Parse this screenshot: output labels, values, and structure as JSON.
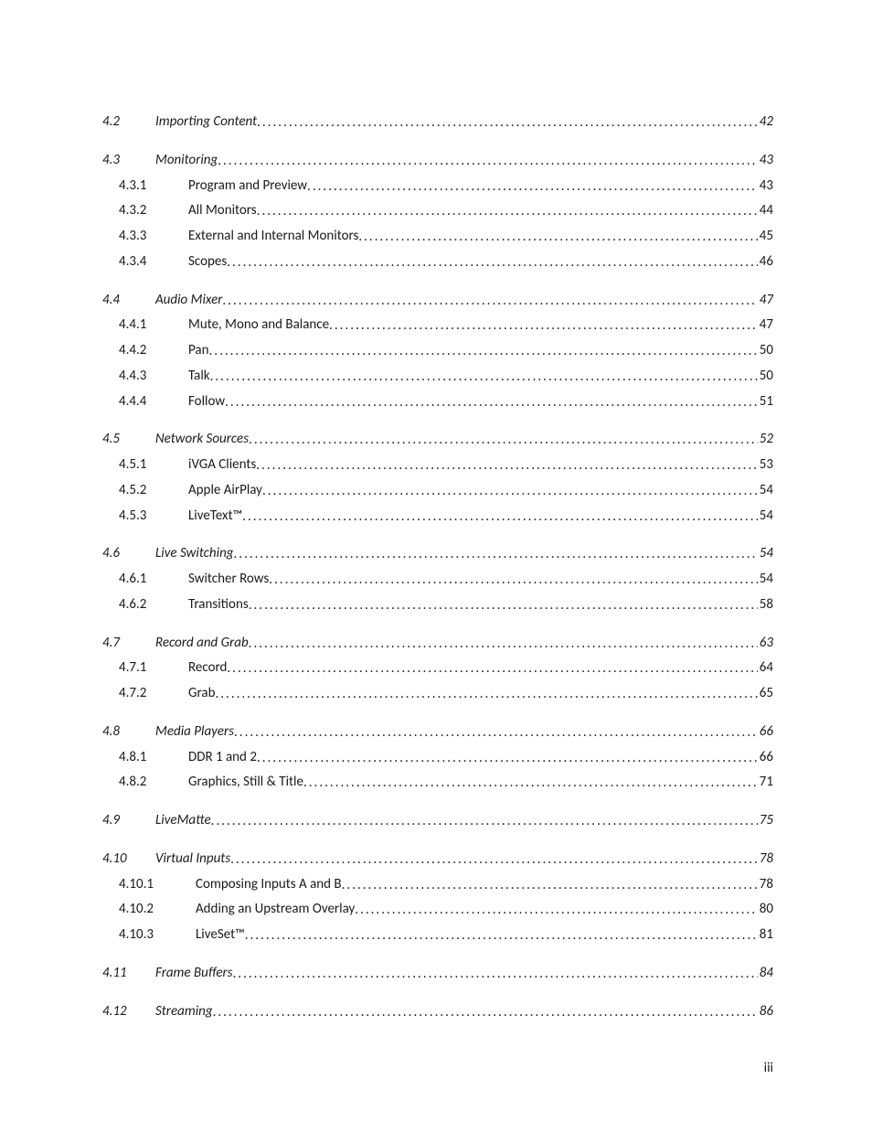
{
  "page_number": "iii",
  "colors": {
    "text": "#1a1a1a",
    "bg": "#ffffff"
  },
  "typography": {
    "font_family": "Calibri",
    "body_size_pt": 11,
    "line_height": 1.85
  },
  "sections": [
    {
      "level": 1,
      "num": "4.2",
      "title": "Importing Content",
      "page": "42",
      "children": []
    },
    {
      "level": 1,
      "num": "4.3",
      "title": "Monitoring",
      "page": "43",
      "children": [
        {
          "level": 2,
          "num": "4.3.1",
          "title": "Program and Preview",
          "page": "43"
        },
        {
          "level": 2,
          "num": "4.3.2",
          "title": "All Monitors",
          "page": "44"
        },
        {
          "level": 2,
          "num": "4.3.3",
          "title": "External and Internal Monitors",
          "page": "45"
        },
        {
          "level": 2,
          "num": "4.3.4",
          "title": "Scopes",
          "page": "46"
        }
      ]
    },
    {
      "level": 1,
      "num": "4.4",
      "title": "Audio Mixer",
      "page": "47",
      "children": [
        {
          "level": 2,
          "num": "4.4.1",
          "title": "Mute, Mono and Balance",
          "page": "47"
        },
        {
          "level": 2,
          "num": "4.4.2",
          "title": "Pan",
          "page": "50"
        },
        {
          "level": 2,
          "num": "4.4.3",
          "title": "Talk",
          "page": "50"
        },
        {
          "level": 2,
          "num": "4.4.4",
          "title": "Follow",
          "page": "51"
        }
      ]
    },
    {
      "level": 1,
      "num": "4.5",
      "title": "Network Sources",
      "page": "52",
      "children": [
        {
          "level": 2,
          "num": "4.5.1",
          "title": "iVGA Clients",
          "page": "53"
        },
        {
          "level": 2,
          "num": "4.5.2",
          "title": "Apple AirPlay",
          "page": "54"
        },
        {
          "level": 2,
          "num": "4.5.3",
          "title": "LiveText™",
          "page": "54"
        }
      ]
    },
    {
      "level": 1,
      "num": "4.6",
      "title": "Live Switching",
      "page": "54",
      "children": [
        {
          "level": 2,
          "num": "4.6.1",
          "title": "Switcher Rows",
          "page": "54"
        },
        {
          "level": 2,
          "num": "4.6.2",
          "title": "Transitions",
          "page": "58"
        }
      ]
    },
    {
      "level": 1,
      "num": "4.7",
      "title": "Record and Grab",
      "page": "63",
      "children": [
        {
          "level": 2,
          "num": "4.7.1",
          "title": "Record",
          "page": "64"
        },
        {
          "level": 2,
          "num": "4.7.2",
          "title": "Grab",
          "page": "65"
        }
      ]
    },
    {
      "level": 1,
      "num": "4.8",
      "title": "Media Players",
      "page": "66",
      "children": [
        {
          "level": 2,
          "num": "4.8.1",
          "title": "DDR 1 and 2",
          "page": "66"
        },
        {
          "level": 2,
          "num": "4.8.2",
          "title": "Graphics, Still & Title",
          "page": "71"
        }
      ]
    },
    {
      "level": 1,
      "num": "4.9",
      "title": "LiveMatte",
      "page": "75",
      "children": []
    },
    {
      "level": 1,
      "num": "4.10",
      "title": "Virtual Inputs",
      "page": "78",
      "children": [
        {
          "level": 2,
          "num": "4.10.1",
          "title": "Composing Inputs A and B",
          "page": "78"
        },
        {
          "level": 2,
          "num": "4.10.2",
          "title": "Adding an Upstream Overlay",
          "page": "80"
        },
        {
          "level": 2,
          "num": "4.10.3",
          "title": "LiveSet™",
          "page": "81"
        }
      ]
    },
    {
      "level": 1,
      "num": "4.11",
      "title": "Frame Buffers",
      "page": "84",
      "children": []
    },
    {
      "level": 1,
      "num": "4.12",
      "title": "Streaming",
      "page": "86",
      "children": []
    }
  ]
}
